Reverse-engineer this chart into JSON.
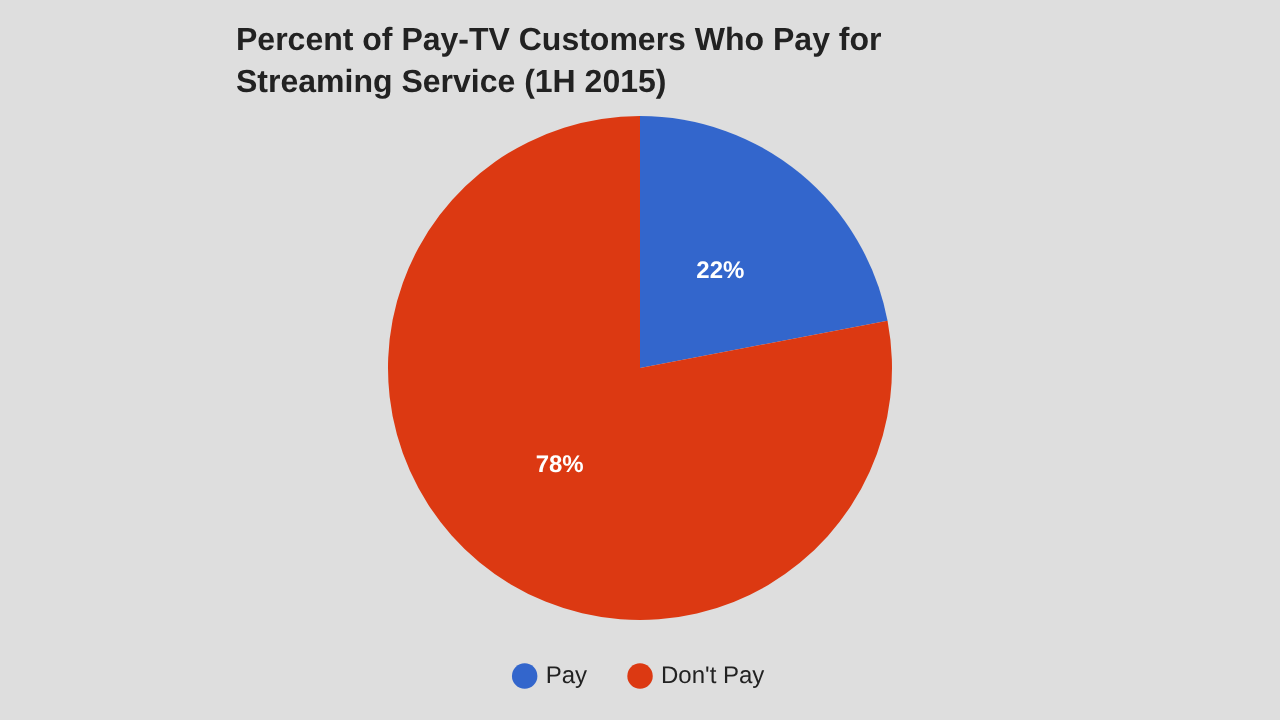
{
  "chart_data": {
    "type": "pie",
    "title": "Percent of Pay-TV Customers Who Pay for Streaming Service (1H 2015)",
    "categories": [
      "Pay",
      "Don't Pay"
    ],
    "values": [
      22,
      78
    ],
    "colors": [
      "#3366cc",
      "#dc3912"
    ],
    "value_labels": [
      "22%",
      "78%"
    ],
    "legend": "bottom"
  }
}
